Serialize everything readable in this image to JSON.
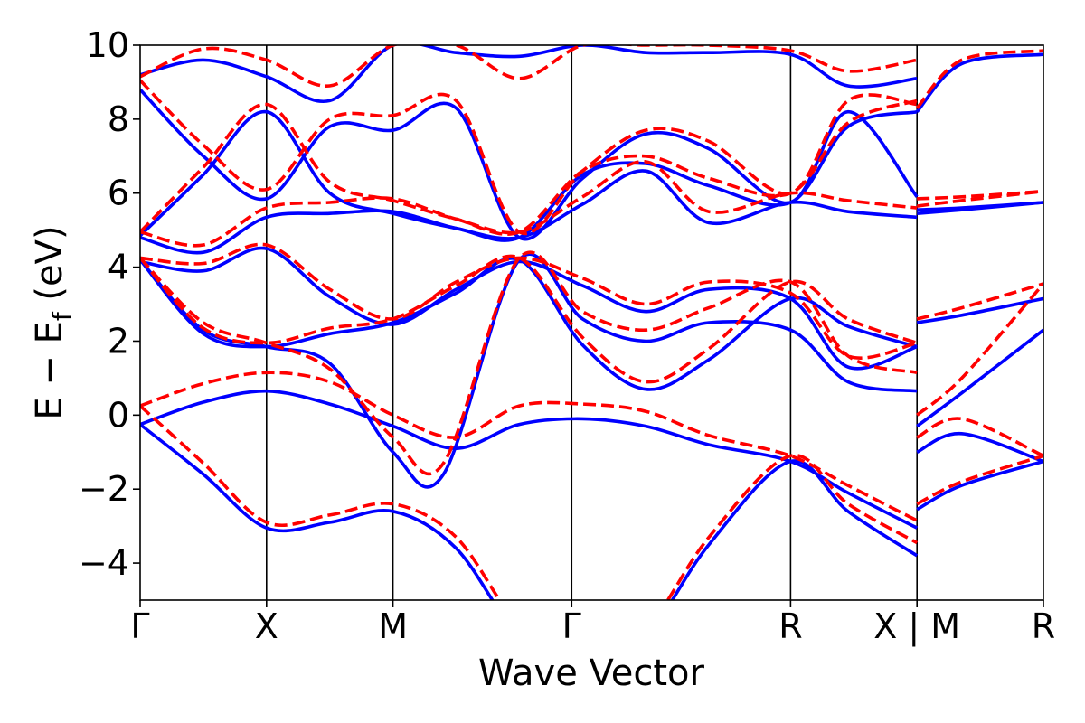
{
  "chart_data": {
    "type": "line",
    "xlabel": "Wave Vector",
    "ylabel": "E − E",
    "ylabel_subscript": "f",
    "ylabel_unit": " (eV)",
    "ylim": [
      -5,
      10
    ],
    "yticks": [
      -4,
      -2,
      0,
      2,
      4,
      6,
      8,
      10
    ],
    "ytick_labels": [
      "−4",
      "−2",
      "0",
      "2",
      "4",
      "6",
      "8",
      "10"
    ],
    "kpath_labels": [
      "Γ",
      "X",
      "M",
      "Γ",
      "R",
      "X | M",
      "R"
    ],
    "kpath_dist": [
      0,
      1,
      2,
      3.414,
      5.146,
      6.146,
      7.146
    ],
    "path_break_after_index": 5,
    "grid": false,
    "legend": "none",
    "colors": {
      "solid": "#0000ff",
      "dashed": "#ff0000",
      "hsym": "#000000"
    },
    "series": [
      {
        "style": "solid",
        "segments": [
          {
            "x": [
              0,
              0.5,
              1,
              1.5,
              2,
              2.5,
              3,
              3.5,
              4,
              4.5,
              5.146,
              5.6,
              6.146
            ],
            "y": [
              -0.25,
              -1.6,
              -3.05,
              -2.9,
              -2.6,
              -3.6,
              -6,
              -7,
              -6,
              -3.5,
              -1.25,
              -2.6,
              -3.8
            ]
          },
          {
            "x": [
              0,
              0.5,
              1,
              1.5,
              2,
              2.5,
              3,
              3.5,
              4,
              4.5,
              5.146,
              5.6,
              6.146
            ],
            "y": [
              -0.25,
              0.35,
              0.65,
              0.3,
              -0.3,
              -0.9,
              -0.25,
              -0.1,
              -0.3,
              -0.8,
              -1.25,
              -2.1,
              -3.05
            ]
          },
          {
            "x": [
              0,
              0.5,
              1,
              1.5,
              2,
              2.4,
              3,
              3.5,
              4,
              4.5,
              5.146,
              5.6,
              6.146
            ],
            "y": [
              4.2,
              2.3,
              1.85,
              1.4,
              -1,
              -1.6,
              4.2,
              2.6,
              2.0,
              2.5,
              2.3,
              0.9,
              0.65
            ]
          },
          {
            "x": [
              0,
              0.5,
              1,
              1.5,
              2,
              2.5,
              3,
              3.5,
              4,
              4.5,
              5.146,
              5.6,
              6.146
            ],
            "y": [
              4.2,
              2.2,
              1.85,
              2.2,
              2.5,
              3.3,
              4.2,
              1.9,
              0.7,
              1.5,
              3.15,
              2.4,
              1.85
            ]
          },
          {
            "x": [
              0,
              0.5,
              1,
              1.5,
              2,
              2.5,
              3,
              3.5,
              4,
              4.5,
              5.146,
              5.6,
              6.146
            ],
            "y": [
              4.15,
              3.9,
              4.5,
              3.2,
              2.45,
              3.4,
              4.15,
              3.5,
              2.8,
              3.4,
              3.15,
              1.3,
              1.85
            ]
          },
          {
            "x": [
              0,
              0.5,
              1,
              1.5,
              2,
              2.5,
              3,
              3.5,
              4,
              4.5,
              5.146,
              5.6,
              6.146
            ],
            "y": [
              4.8,
              4.4,
              5.35,
              5.45,
              5.5,
              5.05,
              4.8,
              5.7,
              6.6,
              5.2,
              5.75,
              5.5,
              5.35
            ]
          },
          {
            "x": [
              0,
              0.5,
              1,
              1.5,
              2,
              2.5,
              3,
              3.5,
              4,
              4.5,
              5.146,
              5.6,
              6.146
            ],
            "y": [
              4.85,
              6.5,
              8.2,
              6.0,
              5.45,
              5.05,
              4.8,
              6.5,
              6.8,
              6.2,
              5.75,
              7.8,
              8.2
            ]
          },
          {
            "x": [
              0,
              0.5,
              1,
              1.5,
              2,
              2.5,
              3,
              3.5,
              4,
              4.5,
              5.146,
              5.6,
              6.146
            ],
            "y": [
              8.8,
              7.0,
              5.85,
              7.8,
              7.7,
              8.3,
              4.8,
              6.4,
              7.6,
              7.2,
              5.75,
              8.2,
              5.9
            ]
          },
          {
            "x": [
              0,
              0.5,
              1,
              1.5,
              2,
              2.5,
              3,
              3.5,
              4,
              4.5,
              5.146,
              5.6,
              6.146
            ],
            "y": [
              9.2,
              9.6,
              9.15,
              8.5,
              10,
              9.8,
              9.7,
              10,
              9.8,
              9.8,
              9.75,
              8.9,
              9.1
            ]
          },
          {
            "x": [
              6.146,
              6.5,
              7.146
            ],
            "y": [
              -1.0,
              -0.5,
              -1.25
            ]
          },
          {
            "x": [
              6.146,
              6.5,
              7.146
            ],
            "y": [
              -2.55,
              -1.9,
              -1.25
            ]
          },
          {
            "x": [
              6.146,
              6.5,
              7.146
            ],
            "y": [
              -0.3,
              0.6,
              2.3
            ]
          },
          {
            "x": [
              6.146,
              6.5,
              7.146
            ],
            "y": [
              2.5,
              2.7,
              3.15
            ]
          },
          {
            "x": [
              6.146,
              6.5,
              7.146
            ],
            "y": [
              5.45,
              5.55,
              5.75
            ]
          },
          {
            "x": [
              6.146,
              6.5,
              7.146
            ],
            "y": [
              5.55,
              5.6,
              5.75
            ]
          },
          {
            "x": [
              6.146,
              6.5,
              7.146
            ],
            "y": [
              8.2,
              9.5,
              9.75
            ]
          }
        ]
      },
      {
        "style": "dashed",
        "segments": [
          {
            "x": [
              0,
              0.5,
              1,
              1.5,
              2,
              2.5,
              3,
              3.5,
              4,
              4.5,
              5.146,
              5.6,
              6.146
            ],
            "y": [
              0.25,
              -1.3,
              -2.9,
              -2.7,
              -2.4,
              -3.3,
              -5.7,
              -6.7,
              -5.8,
              -3.3,
              -1.1,
              -2.4,
              -3.45
            ]
          },
          {
            "x": [
              0,
              0.5,
              1,
              1.5,
              2,
              2.5,
              3,
              3.5,
              4,
              4.5,
              5.146,
              5.6,
              6.146
            ],
            "y": [
              0.25,
              0.85,
              1.15,
              0.9,
              0.0,
              -0.6,
              0.25,
              0.3,
              0.1,
              -0.55,
              -1.1,
              -1.9,
              -2.85
            ]
          },
          {
            "x": [
              0,
              0.5,
              1,
              1.5,
              2,
              2.4,
              3,
              3.5,
              4,
              4.5,
              5.146,
              5.6,
              6.146
            ],
            "y": [
              4.25,
              2.5,
              1.95,
              1.25,
              -0.6,
              -1.3,
              4.25,
              2.8,
              2.3,
              2.9,
              3.6,
              1.6,
              1.15
            ]
          },
          {
            "x": [
              0,
              0.5,
              1,
              1.5,
              2,
              2.5,
              3,
              3.5,
              4,
              4.5,
              5.146,
              5.6,
              6.146
            ],
            "y": [
              4.25,
              2.35,
              1.95,
              2.35,
              2.6,
              3.5,
              4.25,
              2.1,
              0.9,
              1.8,
              3.6,
              2.6,
              1.95
            ]
          },
          {
            "x": [
              0,
              0.5,
              1,
              1.5,
              2,
              2.5,
              3,
              3.5,
              4,
              4.5,
              5.146,
              5.6,
              6.146
            ],
            "y": [
              4.25,
              4.1,
              4.6,
              3.4,
              2.6,
              3.6,
              4.25,
              3.7,
              3.0,
              3.6,
              3.3,
              1.6,
              1.95
            ]
          },
          {
            "x": [
              0,
              0.5,
              1,
              1.5,
              2,
              2.5,
              3,
              3.5,
              4,
              4.5,
              5.146,
              5.6,
              6.146
            ],
            "y": [
              4.95,
              4.6,
              5.6,
              5.75,
              5.85,
              5.3,
              4.95,
              5.9,
              6.85,
              5.5,
              6.0,
              5.8,
              5.6
            ]
          },
          {
            "x": [
              0,
              0.5,
              1,
              1.5,
              2,
              2.5,
              3,
              3.5,
              4,
              4.5,
              5.146,
              5.6,
              6.146
            ],
            "y": [
              4.95,
              6.7,
              8.4,
              6.3,
              5.8,
              5.3,
              4.95,
              6.6,
              7.0,
              6.4,
              6.0,
              7.9,
              8.5
            ]
          },
          {
            "x": [
              0,
              0.5,
              1,
              1.5,
              2,
              2.5,
              3,
              3.5,
              4,
              4.5,
              5.146,
              5.6,
              6.146
            ],
            "y": [
              9.05,
              7.3,
              6.1,
              8.0,
              8.1,
              8.5,
              4.95,
              6.6,
              7.7,
              7.4,
              6.0,
              8.5,
              8.4
            ]
          },
          {
            "x": [
              0,
              0.5,
              1,
              1.5,
              2,
              2.5,
              3,
              3.5,
              4,
              4.5,
              5.146,
              5.6,
              6.146
            ],
            "y": [
              9.15,
              9.9,
              9.6,
              8.9,
              10,
              10,
              9.1,
              10,
              10,
              10,
              9.85,
              9.3,
              9.6
            ]
          },
          {
            "x": [
              6.146,
              6.5,
              7.146
            ],
            "y": [
              -0.6,
              -0.1,
              -1.1
            ]
          },
          {
            "x": [
              6.146,
              6.5,
              7.146
            ],
            "y": [
              -2.4,
              -1.8,
              -1.1
            ]
          },
          {
            "x": [
              6.146,
              6.5,
              7.146
            ],
            "y": [
              0.0,
              1.0,
              3.55
            ]
          },
          {
            "x": [
              6.146,
              6.5,
              7.146
            ],
            "y": [
              2.6,
              2.9,
              3.55
            ]
          },
          {
            "x": [
              6.146,
              6.5,
              7.146
            ],
            "y": [
              5.85,
              5.9,
              6.05
            ]
          },
          {
            "x": [
              6.146,
              6.5,
              7.146
            ],
            "y": [
              5.65,
              5.8,
              6.05
            ]
          },
          {
            "x": [
              6.146,
              6.5,
              7.146
            ],
            "y": [
              8.3,
              9.6,
              9.85
            ]
          }
        ]
      }
    ]
  }
}
